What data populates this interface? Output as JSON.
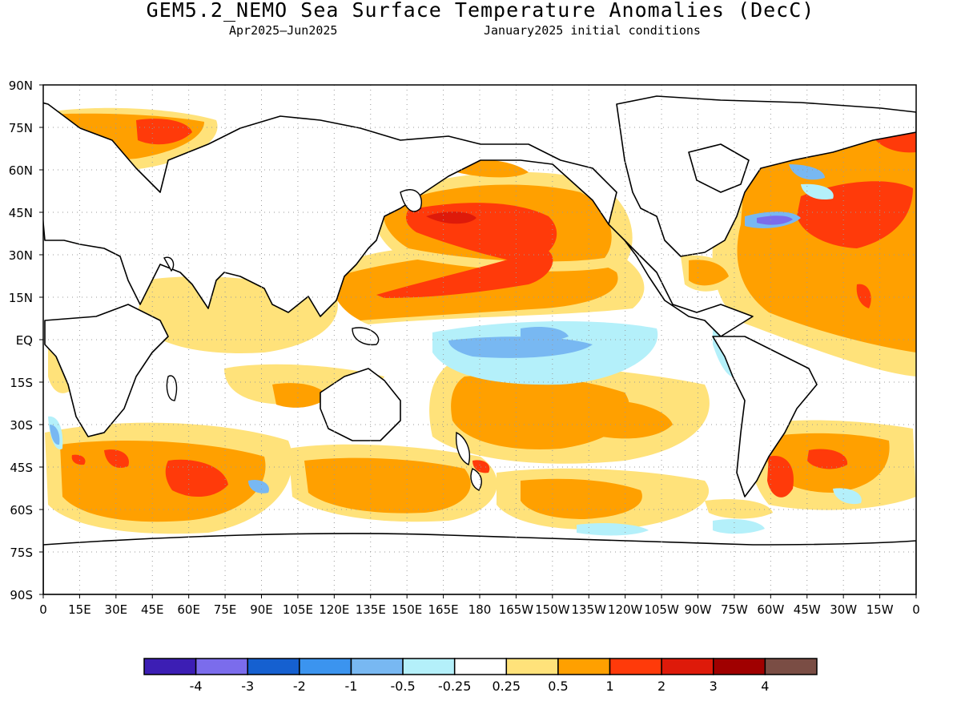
{
  "title": "GEM5.2_NEMO Sea Surface Temperature Anomalies (DecC)",
  "period": "Apr2025–Jun2025",
  "init": "January2025 initial conditions",
  "lat_labels": [
    "90N",
    "75N",
    "60N",
    "45N",
    "30N",
    "15N",
    "EQ",
    "15S",
    "30S",
    "45S",
    "60S",
    "75S",
    "90S"
  ],
  "lon_labels": [
    "0",
    "15E",
    "30E",
    "45E",
    "60E",
    "75E",
    "90E",
    "105E",
    "120E",
    "135E",
    "150E",
    "165E",
    "180",
    "165W",
    "150W",
    "135W",
    "120W",
    "105W",
    "90W",
    "75W",
    "60W",
    "45W",
    "30W",
    "15W",
    "0"
  ],
  "colorbar": {
    "colors": [
      "#3c1eb4",
      "#7b6cec",
      "#1560d0",
      "#3b94ef",
      "#78b8f2",
      "#b4f0fa",
      "#ffffff",
      "#ffe27a",
      "#ffa000",
      "#ff3a0a",
      "#de1a0a",
      "#a00000",
      "#7a4d44"
    ],
    "labels": [
      "-4",
      "-3",
      "-2",
      "-1",
      "-0.5",
      "-0.25",
      "0.25",
      "0.5",
      "1",
      "2",
      "3",
      "4"
    ]
  },
  "palette": {
    "cool1": "#b4f0fa",
    "cool2": "#78b8f2",
    "cool3": "#3b94ef",
    "cool4": "#7b6cec",
    "warm1": "#ffe27a",
    "warm2": "#ffa000",
    "warm3": "#ff3a0a",
    "warm4": "#de1a0a"
  }
}
